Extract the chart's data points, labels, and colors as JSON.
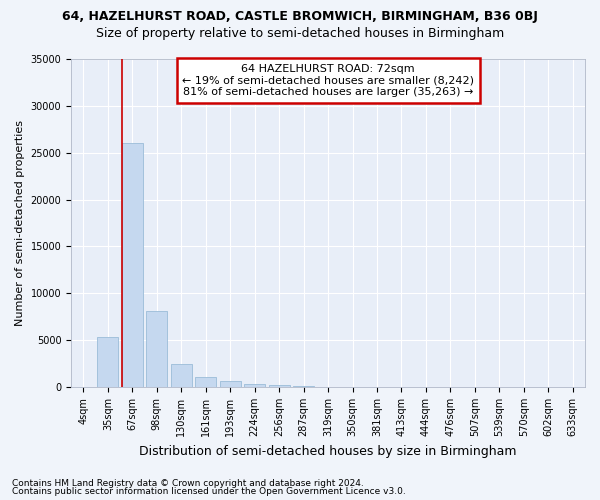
{
  "title_line1": "64, HAZELHURST ROAD, CASTLE BROMWICH, BIRMINGHAM, B36 0BJ",
  "title_line2": "Size of property relative to semi-detached houses in Birmingham",
  "xlabel": "Distribution of semi-detached houses by size in Birmingham",
  "ylabel": "Number of semi-detached properties",
  "footnote1": "Contains HM Land Registry data © Crown copyright and database right 2024.",
  "footnote2": "Contains public sector information licensed under the Open Government Licence v3.0.",
  "bar_labels": [
    "4sqm",
    "35sqm",
    "67sqm",
    "98sqm",
    "130sqm",
    "161sqm",
    "193sqm",
    "224sqm",
    "256sqm",
    "287sqm",
    "319sqm",
    "350sqm",
    "381sqm",
    "413sqm",
    "444sqm",
    "476sqm",
    "507sqm",
    "539sqm",
    "570sqm",
    "602sqm",
    "633sqm"
  ],
  "bar_values": [
    0,
    5300,
    26000,
    8100,
    2500,
    1050,
    600,
    350,
    250,
    150,
    0,
    0,
    0,
    0,
    0,
    0,
    0,
    0,
    0,
    0,
    0
  ],
  "bar_color": "#c5d8ef",
  "bar_edge_color": "#9bbcd8",
  "vline_x": 1.57,
  "vline_color": "#cc0000",
  "annotation_text": "64 HAZELHURST ROAD: 72sqm\n← 19% of semi-detached houses are smaller (8,242)\n81% of semi-detached houses are larger (35,263) →",
  "annotation_box_facecolor": "#ffffff",
  "annotation_box_edgecolor": "#cc0000",
  "ylim": [
    0,
    35000
  ],
  "yticks": [
    0,
    5000,
    10000,
    15000,
    20000,
    25000,
    30000,
    35000
  ],
  "bg_color": "#f0f4fa",
  "plot_bg_color": "#e8eef8",
  "grid_color": "#ffffff",
  "title1_fontsize": 9,
  "title2_fontsize": 9,
  "xlabel_fontsize": 9,
  "ylabel_fontsize": 8,
  "tick_fontsize": 7,
  "annotation_fontsize": 8,
  "footnote_fontsize": 6.5
}
